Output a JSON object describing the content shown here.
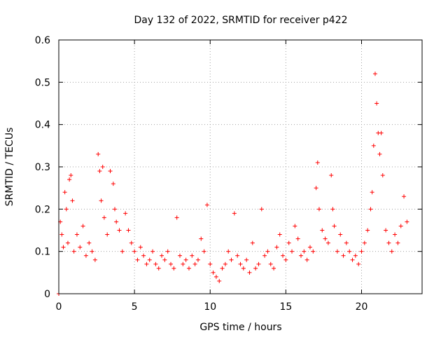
{
  "chart_data": {
    "type": "scatter",
    "title": "Day 132 of 2022, SRMTID for receiver p422",
    "xlabel": "GPS time / hours",
    "ylabel": "SRMTID / TECUs",
    "xlim": [
      0,
      24
    ],
    "ylim": [
      0,
      0.6
    ],
    "xticks": [
      0,
      5,
      10,
      15,
      20
    ],
    "yticks": [
      0,
      0.1,
      0.2,
      0.3,
      0.4,
      0.5,
      0.6
    ],
    "xtick_labels": [
      "0",
      "5",
      "10",
      "15",
      "20"
    ],
    "ytick_labels": [
      "0",
      "0.1",
      "0.2",
      "0.3",
      "0.4",
      "0.5",
      "0.6"
    ],
    "grid": true,
    "series": [
      {
        "name": "SRMTID",
        "color": "#ff0000",
        "marker": "plus",
        "x": [
          0.0,
          0.1,
          0.2,
          0.3,
          0.4,
          0.5,
          0.6,
          0.7,
          0.8,
          0.9,
          1.0,
          1.2,
          1.4,
          1.6,
          1.8,
          2.0,
          2.2,
          2.4,
          2.6,
          2.7,
          2.8,
          2.9,
          3.0,
          3.2,
          3.4,
          3.6,
          3.7,
          3.8,
          4.0,
          4.2,
          4.4,
          4.6,
          4.8,
          5.0,
          5.2,
          5.4,
          5.6,
          5.8,
          6.0,
          6.2,
          6.4,
          6.6,
          6.8,
          7.0,
          7.2,
          7.4,
          7.6,
          7.8,
          8.0,
          8.2,
          8.4,
          8.6,
          8.8,
          9.0,
          9.2,
          9.4,
          9.6,
          9.8,
          10.0,
          10.2,
          10.4,
          10.6,
          10.8,
          11.0,
          11.2,
          11.4,
          11.6,
          11.8,
          12.0,
          12.2,
          12.4,
          12.6,
          12.8,
          13.0,
          13.2,
          13.4,
          13.6,
          13.8,
          14.0,
          14.2,
          14.4,
          14.6,
          14.8,
          15.0,
          15.2,
          15.4,
          15.6,
          15.8,
          16.0,
          16.2,
          16.4,
          16.6,
          16.8,
          17.0,
          17.1,
          17.2,
          17.4,
          17.6,
          17.8,
          18.0,
          18.1,
          18.2,
          18.4,
          18.6,
          18.8,
          19.0,
          19.2,
          19.4,
          19.6,
          19.8,
          20.0,
          20.2,
          20.4,
          20.6,
          20.7,
          20.8,
          20.9,
          21.0,
          21.1,
          21.2,
          21.3,
          21.4,
          21.6,
          21.8,
          22.0,
          22.2,
          22.4,
          22.6,
          22.8,
          23.0
        ],
        "y": [
          0.0,
          0.17,
          0.14,
          0.11,
          0.24,
          0.2,
          0.12,
          0.27,
          0.28,
          0.22,
          0.1,
          0.14,
          0.11,
          0.16,
          0.09,
          0.12,
          0.1,
          0.08,
          0.33,
          0.29,
          0.22,
          0.3,
          0.18,
          0.14,
          0.29,
          0.26,
          0.2,
          0.17,
          0.15,
          0.1,
          0.19,
          0.15,
          0.12,
          0.1,
          0.08,
          0.11,
          0.09,
          0.07,
          0.08,
          0.1,
          0.07,
          0.06,
          0.09,
          0.08,
          0.1,
          0.07,
          0.06,
          0.18,
          0.09,
          0.07,
          0.08,
          0.06,
          0.09,
          0.07,
          0.08,
          0.13,
          0.1,
          0.21,
          0.07,
          0.05,
          0.04,
          0.03,
          0.06,
          0.07,
          0.1,
          0.08,
          0.19,
          0.09,
          0.07,
          0.06,
          0.08,
          0.05,
          0.12,
          0.06,
          0.07,
          0.2,
          0.09,
          0.1,
          0.07,
          0.06,
          0.11,
          0.14,
          0.09,
          0.08,
          0.12,
          0.1,
          0.16,
          0.13,
          0.09,
          0.1,
          0.08,
          0.11,
          0.1,
          0.25,
          0.31,
          0.2,
          0.15,
          0.13,
          0.12,
          0.28,
          0.2,
          0.16,
          0.1,
          0.14,
          0.09,
          0.12,
          0.1,
          0.08,
          0.09,
          0.07,
          0.1,
          0.12,
          0.15,
          0.2,
          0.24,
          0.35,
          0.52,
          0.45,
          0.38,
          0.33,
          0.38,
          0.28,
          0.15,
          0.12,
          0.1,
          0.14,
          0.12,
          0.16,
          0.23,
          0.17
        ]
      }
    ]
  }
}
